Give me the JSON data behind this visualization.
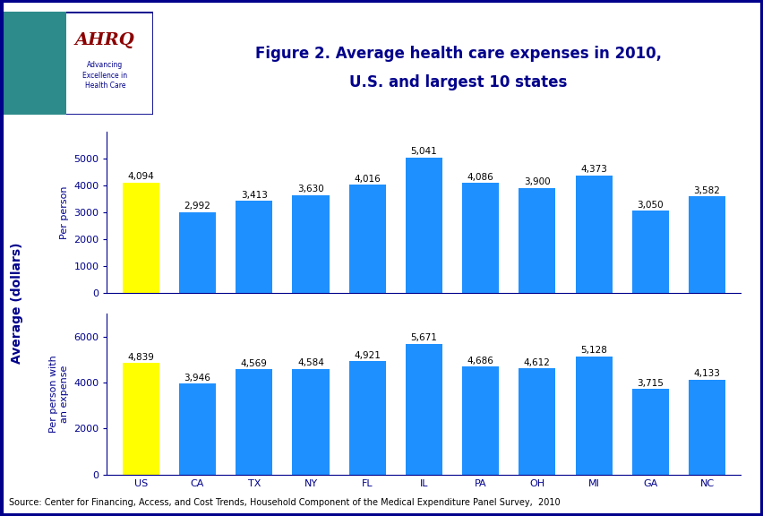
{
  "categories": [
    "US",
    "CA",
    "TX",
    "NY",
    "FL",
    "IL",
    "PA",
    "OH",
    "MI",
    "GA",
    "NC"
  ],
  "per_person": [
    4094,
    2992,
    3413,
    3630,
    4016,
    5041,
    4086,
    3900,
    4373,
    3050,
    3582
  ],
  "per_person_with_expense": [
    4839,
    3946,
    4569,
    4584,
    4921,
    5671,
    4686,
    4612,
    5128,
    3715,
    4133
  ],
  "bar_color_us": "#FFFF00",
  "bar_color_states": "#1E90FF",
  "title_line1": "Figure 2. Average health care expenses in 2010,",
  "title_line2": "U.S. and largest 10 states",
  "ylabel_shared": "Average (dollars)",
  "subplot1_ylabel": "Per person",
  "subplot2_ylabel": "Per person with\nan expense",
  "source_text": "Source: Center for Financing, Access, and Cost Trends, Household Component of the Medical Expenditure Panel Survey,  2010",
  "title_color": "#00008B",
  "axis_color": "#00008B",
  "label_color": "#00008B",
  "background_color": "#FFFFFF",
  "border_color": "#00008B",
  "divider_color": "#00008B",
  "subplot1_ylim": [
    0,
    6000
  ],
  "subplot2_ylim": [
    0,
    7000
  ],
  "subplot1_yticks": [
    0,
    1000,
    2000,
    3000,
    4000,
    5000
  ],
  "subplot2_yticks": [
    0,
    2000,
    4000,
    6000
  ],
  "title_fontsize": 12,
  "bar_label_fontsize": 7.5,
  "tick_fontsize": 8,
  "ylabel_fontsize": 8,
  "shared_ylabel_fontsize": 10,
  "source_fontsize": 7
}
